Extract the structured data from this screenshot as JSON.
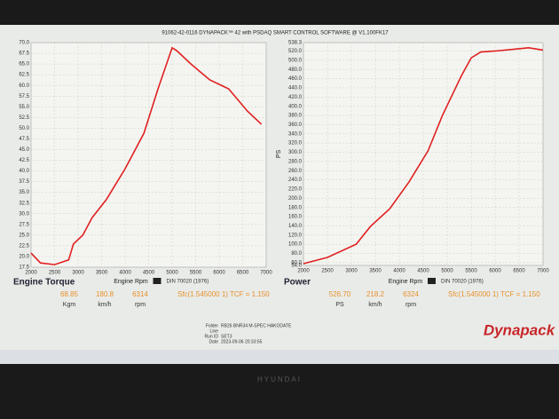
{
  "header": "91062-42-0116 DYNAPACK™ 42 with PSDAQ SMART CONTROL SOFTWARE @ V1.100FK17",
  "chart_data": [
    {
      "type": "line",
      "title": "Engine Torque",
      "x_label": "Engine Rpm",
      "standard": "DIN 70020 (1976)",
      "color": "#e02020",
      "grid": true,
      "x": [
        2000,
        2200,
        2500,
        2800,
        2900,
        3100,
        3300,
        3600,
        4000,
        4400,
        4700,
        5000,
        5100,
        5400,
        5800,
        6200,
        6600,
        6900
      ],
      "values": [
        20.8,
        18.5,
        18.1,
        19.2,
        22.9,
        25.0,
        29.1,
        33.3,
        40.5,
        48.8,
        59.2,
        68.8,
        68.1,
        65.0,
        61.3,
        59.2,
        54.0,
        50.9
      ],
      "xlim": [
        2000,
        7000
      ],
      "xticks": [
        2000,
        2500,
        3000,
        3500,
        4000,
        4500,
        5000,
        5500,
        6000,
        6500,
        7000
      ],
      "ylim": [
        17.5,
        70
      ],
      "yticks": [
        17.5,
        {
          "value": 20,
          "label": "20.0"
        },
        22.5,
        {
          "value": 25,
          "label": "25.0"
        },
        27.5,
        {
          "value": 30,
          "label": "30.0"
        },
        32.5,
        {
          "value": 35,
          "label": "35.0"
        },
        37.5,
        {
          "value": 40,
          "label": "40.0"
        },
        42.5,
        {
          "value": 45,
          "label": "45.0"
        },
        47.5,
        {
          "value": 50,
          "label": "50.0"
        },
        52.5,
        {
          "value": 55,
          "label": "55.0"
        },
        57.5,
        {
          "value": 60,
          "label": "60.0"
        },
        62.5,
        {
          "value": 65,
          "label": "65.0"
        },
        67.5,
        {
          "value": 70,
          "label": "70.0"
        }
      ],
      "readouts": [
        "68.85",
        "180.8",
        "6314",
        "Sfc(1.545000 1) TCF = 1.150"
      ],
      "units": [
        "Kgm",
        "km/h",
        "rpm"
      ]
    },
    {
      "type": "line",
      "title": "Power",
      "x_label": "Engine Rpm",
      "y_label": "PS",
      "standard": "DIN 70020 (1976)",
      "color": "#e02020",
      "grid": true,
      "x": [
        2000,
        2500,
        3100,
        3400,
        3800,
        4200,
        4600,
        4900,
        5300,
        5500,
        5700,
        6000,
        6400,
        6700,
        7000
      ],
      "values": [
        57.9,
        71.4,
        100,
        139,
        177,
        235,
        303,
        380,
        467,
        505,
        518,
        520,
        524,
        527,
        522
      ],
      "xlim": [
        2000,
        7000
      ],
      "xticks": [
        2000,
        2500,
        3000,
        3500,
        4000,
        4500,
        5000,
        5500,
        6000,
        6500,
        7000
      ],
      "ylim": [
        54,
        538.3
      ],
      "yticks": [
        {
          "value": 54,
          "label": "54.0"
        },
        {
          "value": 60,
          "label": "60.0"
        },
        {
          "value": 80,
          "label": "80.0"
        },
        {
          "value": 100,
          "label": "100.0"
        },
        {
          "value": 120,
          "label": "120.0"
        },
        {
          "value": 140,
          "label": "140.0"
        },
        {
          "value": 160,
          "label": "160.0"
        },
        {
          "value": 180,
          "label": "180.0"
        },
        {
          "value": 200,
          "label": "200.0"
        },
        {
          "value": 220,
          "label": "220.0"
        },
        {
          "value": 240,
          "label": "240.0"
        },
        {
          "value": 260,
          "label": "260.0"
        },
        {
          "value": 280,
          "label": "280.0"
        },
        {
          "value": 300,
          "label": "300.0"
        },
        {
          "value": 320,
          "label": "320.0"
        },
        {
          "value": 340,
          "label": "340.0"
        },
        {
          "value": 360,
          "label": "360.0"
        },
        {
          "value": 380,
          "label": "380.0"
        },
        {
          "value": 400,
          "label": "400.0"
        },
        {
          "value": 420,
          "label": "420.0"
        },
        {
          "value": 440,
          "label": "440.0"
        },
        {
          "value": 460,
          "label": "460.0"
        },
        {
          "value": 480,
          "label": "480.0"
        },
        {
          "value": 500,
          "label": "500.0"
        },
        {
          "value": 520,
          "label": "520.0"
        },
        538.3
      ],
      "readouts": [
        "526.70",
        "218.2",
        "6324",
        "Sfc(1.545000 1) TCF = 1.150"
      ],
      "units": [
        "PS",
        "km/h",
        "rpm"
      ]
    }
  ],
  "run_info": {
    "labels": [
      "Folder",
      "Line",
      "Run ID",
      "Date"
    ],
    "values": [
      "RB26 BNR34 M-SPEC HAKODATE",
      "",
      "SET3",
      "2023-09-06 20:33:55"
    ]
  },
  "logo": "Dynapack",
  "monitor_brand": "HYUNDAI"
}
